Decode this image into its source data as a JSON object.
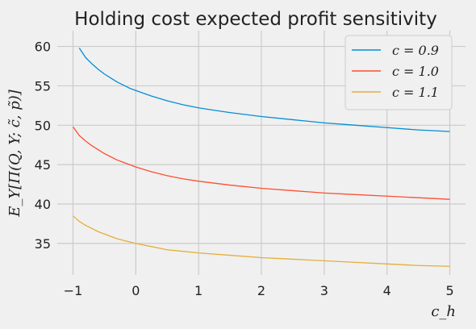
{
  "chart_data": {
    "type": "line",
    "title": "Holding cost expected profit sensitivity",
    "xlabel": "c_h",
    "ylabel": "E_Y[Π(Q, Y; c̃, p̃)]",
    "xlim": [
      -1.25,
      5.25
    ],
    "ylim": [
      31,
      62
    ],
    "xticks": [
      -1,
      0,
      1,
      2,
      3,
      4,
      5
    ],
    "yticks": [
      35,
      40,
      45,
      50,
      55,
      60
    ],
    "grid": true,
    "legend_position": "top-right",
    "series": [
      {
        "name": "c = 0.9",
        "legend": "c = 0.9",
        "color": "#008fd5",
        "x": [
          -0.9,
          -0.8,
          -0.7,
          -0.6,
          -0.5,
          -0.4,
          -0.3,
          -0.2,
          -0.1,
          0,
          0.25,
          0.5,
          0.75,
          1,
          1.5,
          2,
          2.5,
          3,
          3.5,
          4,
          4.5,
          5
        ],
        "y": [
          59.8,
          58.6,
          57.8,
          57.1,
          56.5,
          56.0,
          55.5,
          55.1,
          54.7,
          54.4,
          53.7,
          53.1,
          52.6,
          52.2,
          51.6,
          51.1,
          50.7,
          50.3,
          50.0,
          49.7,
          49.4,
          49.2
        ]
      },
      {
        "name": "c = 1.0",
        "legend": "c = 1.0",
        "color": "#fc4f30",
        "x": [
          -1.0,
          -0.9,
          -0.8,
          -0.7,
          -0.6,
          -0.5,
          -0.4,
          -0.3,
          -0.2,
          -0.1,
          0,
          0.25,
          0.5,
          0.75,
          1,
          1.5,
          2,
          2.5,
          3,
          3.5,
          4,
          4.5,
          5
        ],
        "y": [
          49.8,
          48.7,
          48.0,
          47.4,
          46.9,
          46.4,
          46.0,
          45.6,
          45.3,
          45.0,
          44.7,
          44.1,
          43.6,
          43.2,
          42.9,
          42.4,
          42.0,
          41.7,
          41.4,
          41.2,
          41.0,
          40.8,
          40.6
        ]
      },
      {
        "name": "c = 1.1",
        "legend": "c = 1.1",
        "color": "#e5ae38",
        "x": [
          -1.0,
          -0.9,
          -0.8,
          -0.7,
          -0.6,
          -0.5,
          -0.4,
          -0.3,
          -0.2,
          -0.1,
          0,
          0.25,
          0.5,
          0.75,
          1,
          1.5,
          2,
          2.5,
          3,
          3.5,
          4,
          4.5,
          5
        ],
        "y": [
          38.5,
          37.8,
          37.3,
          36.9,
          36.5,
          36.2,
          35.9,
          35.6,
          35.4,
          35.2,
          35.0,
          34.6,
          34.2,
          34.0,
          33.8,
          33.5,
          33.2,
          33.0,
          32.8,
          32.6,
          32.4,
          32.2,
          32.1
        ]
      }
    ]
  }
}
